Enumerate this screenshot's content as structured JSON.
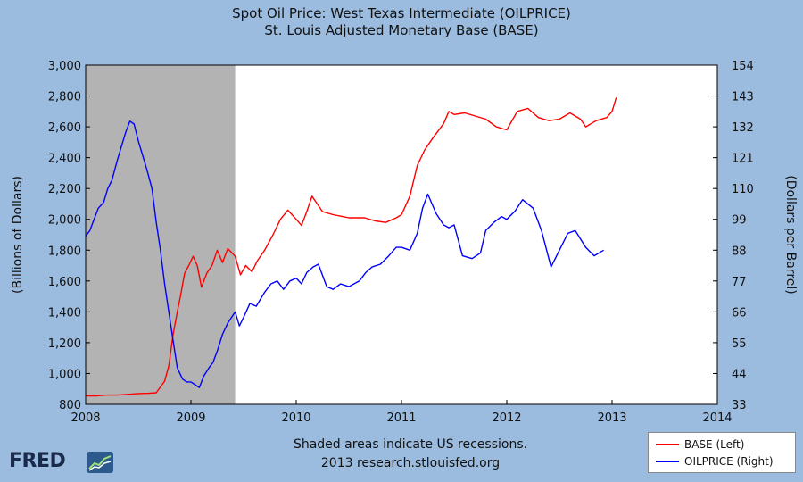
{
  "title_line1": "Spot Oil Price: West Texas Intermediate (OILPRICE)",
  "title_line2": "St. Louis Adjusted Monetary Base (BASE)",
  "footer_line1": "Shaded areas indicate US recessions.",
  "footer_line2": "2013 research.stlouisfed.org",
  "logo_text": "FRED",
  "logo_icon": "trend-chart-icon",
  "colors": {
    "background": "#9bbcdf",
    "plot": "#ffffff",
    "recession": "#b3b3b3",
    "base": "#ff0000",
    "oil": "#0000ff"
  },
  "chart_data": {
    "type": "line",
    "x_axis": {
      "range": [
        2008,
        2014
      ],
      "ticks": [
        "2008",
        "2009",
        "2010",
        "2011",
        "2012",
        "2013",
        "2014"
      ]
    },
    "y_left": {
      "label": "(Billions of Dollars)",
      "range": [
        800,
        3000
      ],
      "ticks": [
        "800",
        "1,000",
        "1,200",
        "1,400",
        "1,600",
        "1,800",
        "2,000",
        "2,200",
        "2,400",
        "2,600",
        "2,800",
        "3,000"
      ]
    },
    "y_right": {
      "label": "(Dollars per Barrel)",
      "range": [
        33,
        154
      ],
      "ticks": [
        "33",
        "44",
        "55",
        "66",
        "77",
        "88",
        "99",
        "110",
        "121",
        "132",
        "143",
        "154"
      ]
    },
    "recession_shading": [
      [
        2008.0,
        2009.42
      ]
    ],
    "grid": false,
    "legend": "bottom-right",
    "series": [
      {
        "name": "BASE (Left)",
        "axis": "left",
        "color": "#ff0000",
        "points": [
          [
            2008.0,
            855
          ],
          [
            2008.1,
            855
          ],
          [
            2008.2,
            860
          ],
          [
            2008.3,
            860
          ],
          [
            2008.4,
            865
          ],
          [
            2008.5,
            870
          ],
          [
            2008.6,
            872
          ],
          [
            2008.67,
            875
          ],
          [
            2008.75,
            950
          ],
          [
            2008.79,
            1050
          ],
          [
            2008.83,
            1250
          ],
          [
            2008.87,
            1400
          ],
          [
            2008.9,
            1500
          ],
          [
            2008.94,
            1650
          ],
          [
            2008.98,
            1700
          ],
          [
            2009.02,
            1760
          ],
          [
            2009.06,
            1700
          ],
          [
            2009.1,
            1560
          ],
          [
            2009.15,
            1650
          ],
          [
            2009.2,
            1700
          ],
          [
            2009.25,
            1800
          ],
          [
            2009.3,
            1720
          ],
          [
            2009.35,
            1810
          ],
          [
            2009.42,
            1760
          ],
          [
            2009.47,
            1640
          ],
          [
            2009.52,
            1700
          ],
          [
            2009.58,
            1660
          ],
          [
            2009.63,
            1730
          ],
          [
            2009.7,
            1800
          ],
          [
            2009.78,
            1900
          ],
          [
            2009.85,
            2000
          ],
          [
            2009.92,
            2060
          ],
          [
            2010.0,
            2000
          ],
          [
            2010.05,
            1960
          ],
          [
            2010.1,
            2050
          ],
          [
            2010.15,
            2150
          ],
          [
            2010.2,
            2100
          ],
          [
            2010.25,
            2050
          ],
          [
            2010.35,
            2030
          ],
          [
            2010.5,
            2010
          ],
          [
            2010.65,
            2010
          ],
          [
            2010.75,
            1990
          ],
          [
            2010.85,
            1980
          ],
          [
            2010.95,
            2010
          ],
          [
            2011.0,
            2030
          ],
          [
            2011.08,
            2150
          ],
          [
            2011.15,
            2350
          ],
          [
            2011.22,
            2450
          ],
          [
            2011.3,
            2530
          ],
          [
            2011.4,
            2620
          ],
          [
            2011.45,
            2700
          ],
          [
            2011.5,
            2680
          ],
          [
            2011.6,
            2690
          ],
          [
            2011.7,
            2670
          ],
          [
            2011.8,
            2650
          ],
          [
            2011.9,
            2600
          ],
          [
            2012.0,
            2580
          ],
          [
            2012.1,
            2700
          ],
          [
            2012.2,
            2720
          ],
          [
            2012.3,
            2660
          ],
          [
            2012.4,
            2640
          ],
          [
            2012.5,
            2650
          ],
          [
            2012.6,
            2690
          ],
          [
            2012.7,
            2650
          ],
          [
            2012.75,
            2600
          ],
          [
            2012.85,
            2640
          ],
          [
            2012.95,
            2660
          ],
          [
            2013.0,
            2700
          ],
          [
            2013.04,
            2790
          ]
        ]
      },
      {
        "name": "OILPRICE (Right)",
        "axis": "right",
        "color": "#0000ff",
        "points": [
          [
            2008.0,
            93
          ],
          [
            2008.04,
            95
          ],
          [
            2008.08,
            99
          ],
          [
            2008.12,
            103
          ],
          [
            2008.17,
            105
          ],
          [
            2008.21,
            110
          ],
          [
            2008.25,
            113
          ],
          [
            2008.3,
            120
          ],
          [
            2008.34,
            125
          ],
          [
            2008.38,
            130
          ],
          [
            2008.42,
            134
          ],
          [
            2008.46,
            133
          ],
          [
            2008.5,
            127
          ],
          [
            2008.54,
            122
          ],
          [
            2008.58,
            117
          ],
          [
            2008.63,
            110
          ],
          [
            2008.67,
            98
          ],
          [
            2008.71,
            88
          ],
          [
            2008.75,
            76
          ],
          [
            2008.79,
            66
          ],
          [
            2008.83,
            56
          ],
          [
            2008.87,
            46
          ],
          [
            2008.92,
            42
          ],
          [
            2008.96,
            41
          ],
          [
            2009.0,
            41
          ],
          [
            2009.04,
            40
          ],
          [
            2009.08,
            39
          ],
          [
            2009.12,
            43
          ],
          [
            2009.17,
            46
          ],
          [
            2009.21,
            48
          ],
          [
            2009.25,
            52
          ],
          [
            2009.3,
            58
          ],
          [
            2009.35,
            62
          ],
          [
            2009.42,
            66
          ],
          [
            2009.46,
            61
          ],
          [
            2009.5,
            64
          ],
          [
            2009.56,
            69
          ],
          [
            2009.62,
            68
          ],
          [
            2009.7,
            73
          ],
          [
            2009.76,
            76
          ],
          [
            2009.82,
            77
          ],
          [
            2009.88,
            74
          ],
          [
            2009.94,
            77
          ],
          [
            2010.0,
            78
          ],
          [
            2010.05,
            76
          ],
          [
            2010.1,
            80
          ],
          [
            2010.16,
            82
          ],
          [
            2010.21,
            83
          ],
          [
            2010.29,
            75
          ],
          [
            2010.35,
            74
          ],
          [
            2010.42,
            76
          ],
          [
            2010.5,
            75
          ],
          [
            2010.6,
            77
          ],
          [
            2010.66,
            80
          ],
          [
            2010.72,
            82
          ],
          [
            2010.8,
            83
          ],
          [
            2010.88,
            86
          ],
          [
            2010.95,
            89
          ],
          [
            2011.0,
            89
          ],
          [
            2011.08,
            88
          ],
          [
            2011.15,
            94
          ],
          [
            2011.2,
            103
          ],
          [
            2011.25,
            108
          ],
          [
            2011.33,
            101
          ],
          [
            2011.4,
            97
          ],
          [
            2011.45,
            96
          ],
          [
            2011.5,
            97
          ],
          [
            2011.58,
            86
          ],
          [
            2011.67,
            85
          ],
          [
            2011.75,
            87
          ],
          [
            2011.8,
            95
          ],
          [
            2011.88,
            98
          ],
          [
            2011.95,
            100
          ],
          [
            2012.0,
            99
          ],
          [
            2012.08,
            102
          ],
          [
            2012.15,
            106
          ],
          [
            2012.25,
            103
          ],
          [
            2012.33,
            95
          ],
          [
            2012.42,
            82
          ],
          [
            2012.5,
            88
          ],
          [
            2012.58,
            94
          ],
          [
            2012.65,
            95
          ],
          [
            2012.75,
            89
          ],
          [
            2012.83,
            86
          ],
          [
            2012.92,
            88
          ]
        ]
      }
    ]
  }
}
